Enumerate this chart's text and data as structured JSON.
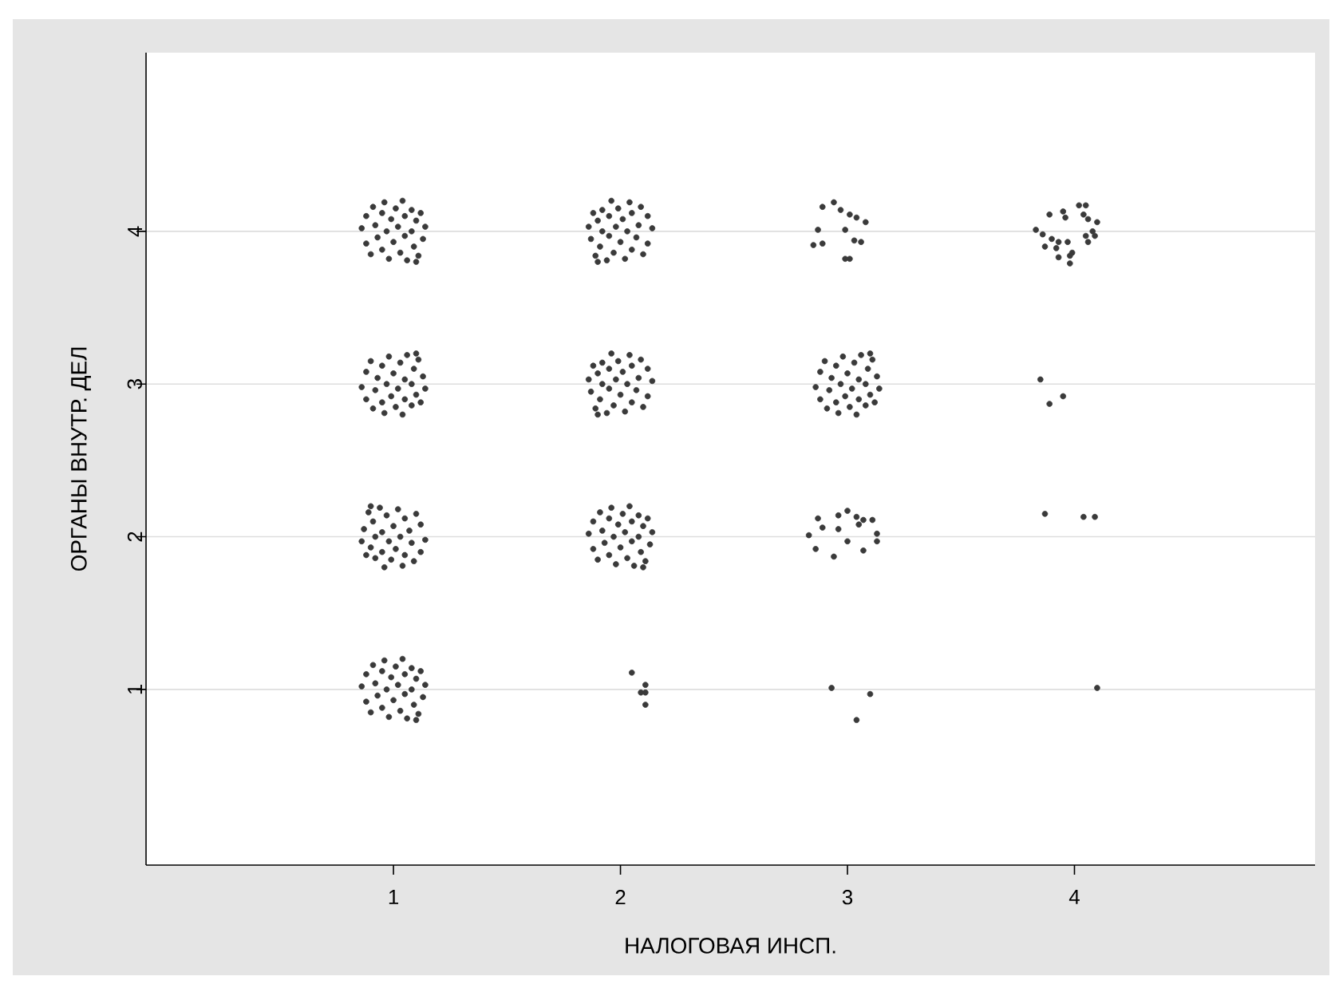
{
  "chart_data": {
    "type": "scatter",
    "xlabel": "НАЛОГОВАЯ ИНСП.",
    "ylabel": "ОРГАНЫ ВНУТР. ДЕЛ",
    "xlim": [
      -0.09,
      5.06
    ],
    "ylim": [
      -0.15,
      5.17
    ],
    "xticks": [
      1,
      2,
      3,
      4
    ],
    "yticks": [
      1,
      2,
      3,
      4
    ],
    "grid": "y",
    "series": [
      {
        "color": "#3a3a3a",
        "x": [
          0.86,
          0.88,
          0.88,
          0.9,
          0.91,
          0.92,
          0.93,
          0.95,
          0.95,
          0.96,
          0.97,
          0.98,
          0.99,
          1.0,
          1.01,
          1.02,
          1.03,
          1.04,
          1.05,
          1.05,
          1.06,
          1.08,
          1.08,
          1.09,
          1.1,
          1.11,
          1.12,
          1.13,
          1.14,
          1.1
        ],
        "values": [
          4.02,
          4.1,
          3.92,
          3.85,
          4.16,
          4.04,
          3.96,
          4.12,
          3.88,
          4.19,
          4.0,
          3.82,
          4.08,
          3.93,
          4.15,
          4.03,
          3.86,
          4.2,
          4.1,
          3.97,
          3.81,
          4.14,
          4.0,
          3.9,
          4.07,
          3.84,
          4.12,
          3.95,
          4.03,
          3.8
        ]
      },
      {
        "color": "#3a3a3a",
        "x": [
          2.14,
          2.12,
          2.12,
          2.1,
          2.09,
          2.08,
          2.07,
          2.05,
          2.05,
          2.04,
          2.03,
          2.02,
          2.01,
          2.0,
          1.99,
          1.98,
          1.97,
          1.96,
          1.95,
          1.95,
          1.94,
          1.92,
          1.92,
          1.91,
          1.9,
          1.89,
          1.88,
          1.87,
          1.86,
          1.9
        ],
        "values": [
          4.02,
          4.1,
          3.92,
          3.85,
          4.16,
          4.04,
          3.96,
          4.12,
          3.88,
          4.19,
          4.0,
          3.82,
          4.08,
          3.93,
          4.15,
          4.03,
          3.86,
          4.2,
          4.1,
          3.97,
          3.81,
          4.14,
          4.0,
          3.9,
          4.07,
          3.84,
          4.12,
          3.95,
          4.03,
          3.8
        ]
      },
      {
        "color": "#3a3a3a",
        "x": [
          2.89,
          2.94,
          2.97,
          3.01,
          3.04,
          3.08,
          2.87,
          2.99,
          3.03,
          3.06,
          2.85,
          2.89,
          2.99,
          3.01
        ],
        "values": [
          4.16,
          4.19,
          4.14,
          4.11,
          4.09,
          4.06,
          4.01,
          4.01,
          3.94,
          3.93,
          3.91,
          3.92,
          3.82,
          3.82
        ]
      },
      {
        "color": "#3a3a3a",
        "x": [
          3.83,
          3.86,
          3.89,
          3.95,
          3.96,
          4.02,
          4.05,
          4.04,
          4.06,
          4.1,
          4.08,
          4.05,
          4.09,
          4.06,
          3.9,
          3.93,
          3.97,
          3.87,
          3.92,
          3.99,
          3.98,
          3.93,
          3.98
        ],
        "values": [
          4.01,
          3.98,
          4.11,
          4.13,
          4.09,
          4.17,
          4.17,
          4.11,
          4.08,
          4.06,
          4.0,
          3.97,
          3.97,
          3.93,
          3.95,
          3.93,
          3.93,
          3.9,
          3.89,
          3.86,
          3.84,
          3.83,
          3.79
        ]
      },
      {
        "color": "#3a3a3a",
        "x": [
          0.86,
          0.88,
          0.88,
          0.9,
          0.91,
          0.92,
          0.93,
          0.95,
          0.95,
          0.96,
          0.97,
          0.98,
          0.99,
          1.0,
          1.01,
          1.02,
          1.03,
          1.04,
          1.05,
          1.05,
          1.06,
          1.08,
          1.08,
          1.09,
          1.1,
          1.11,
          1.12,
          1.13,
          1.14,
          1.1
        ],
        "values": [
          2.98,
          2.9,
          3.08,
          3.15,
          2.84,
          2.96,
          3.04,
          2.88,
          3.12,
          2.81,
          3.0,
          3.18,
          2.92,
          3.07,
          2.85,
          2.97,
          3.14,
          2.8,
          2.9,
          3.03,
          3.19,
          2.86,
          3.0,
          3.1,
          2.93,
          3.16,
          2.88,
          3.05,
          2.97,
          3.2
        ]
      },
      {
        "color": "#3a3a3a",
        "x": [
          2.14,
          2.12,
          2.12,
          2.1,
          2.09,
          2.08,
          2.07,
          2.05,
          2.05,
          2.04,
          2.03,
          2.02,
          2.01,
          2.0,
          1.99,
          1.98,
          1.97,
          1.96,
          1.95,
          1.95,
          1.94,
          1.92,
          1.92,
          1.91,
          1.9,
          1.89,
          1.88,
          1.87,
          1.86,
          1.9
        ],
        "values": [
          3.02,
          3.1,
          2.92,
          2.85,
          3.16,
          3.04,
          2.96,
          3.12,
          2.88,
          3.19,
          3.0,
          2.82,
          3.08,
          2.93,
          3.15,
          3.03,
          2.86,
          3.2,
          3.1,
          2.97,
          2.81,
          3.14,
          3.0,
          2.9,
          3.07,
          2.84,
          3.12,
          2.95,
          3.03,
          2.8
        ]
      },
      {
        "color": "#3a3a3a",
        "x": [
          2.86,
          2.88,
          2.88,
          2.9,
          2.91,
          2.92,
          2.93,
          2.95,
          2.95,
          2.96,
          2.97,
          2.98,
          2.99,
          3.0,
          3.01,
          3.02,
          3.03,
          3.04,
          3.05,
          3.05,
          3.06,
          3.08,
          3.08,
          3.09,
          3.1,
          3.11,
          3.12,
          3.13,
          3.14,
          3.1
        ],
        "values": [
          2.98,
          2.9,
          3.08,
          3.15,
          2.84,
          2.96,
          3.04,
          2.88,
          3.12,
          2.81,
          3.0,
          3.18,
          2.92,
          3.07,
          2.85,
          2.97,
          3.14,
          2.8,
          2.9,
          3.03,
          3.19,
          2.86,
          3.0,
          3.1,
          2.93,
          3.16,
          2.88,
          3.05,
          2.97,
          3.2
        ]
      },
      {
        "color": "#3a3a3a",
        "x": [
          3.85,
          3.89,
          3.95
        ],
        "values": [
          3.03,
          2.87,
          2.92
        ]
      },
      {
        "color": "#3a3a3a",
        "x": [
          1.14,
          1.12,
          1.12,
          1.1,
          1.09,
          1.08,
          1.07,
          1.05,
          1.05,
          1.04,
          1.03,
          1.02,
          1.01,
          1.0,
          0.99,
          0.98,
          0.97,
          0.96,
          0.95,
          0.95,
          0.94,
          0.92,
          0.92,
          0.91,
          0.9,
          0.89,
          0.88,
          0.87,
          0.86,
          0.9
        ],
        "values": [
          1.98,
          1.9,
          2.08,
          2.15,
          1.84,
          1.96,
          2.04,
          1.88,
          2.12,
          1.81,
          2.0,
          2.18,
          1.92,
          2.07,
          1.85,
          1.97,
          2.14,
          1.8,
          1.9,
          2.03,
          2.19,
          1.86,
          2.0,
          2.1,
          1.93,
          2.16,
          1.88,
          2.05,
          1.97,
          2.2
        ]
      },
      {
        "color": "#3a3a3a",
        "x": [
          1.86,
          1.88,
          1.88,
          1.9,
          1.91,
          1.92,
          1.93,
          1.95,
          1.95,
          1.96,
          1.97,
          1.98,
          1.99,
          2.0,
          2.01,
          2.02,
          2.03,
          2.04,
          2.05,
          2.05,
          2.06,
          2.08,
          2.08,
          2.09,
          2.1,
          2.11,
          2.12,
          2.13,
          2.14,
          2.1
        ],
        "values": [
          2.02,
          2.1,
          1.92,
          1.85,
          2.16,
          2.04,
          1.96,
          2.12,
          1.88,
          2.19,
          2.0,
          1.82,
          2.08,
          1.93,
          2.15,
          2.03,
          1.86,
          2.2,
          2.1,
          1.97,
          1.81,
          2.14,
          2.0,
          1.9,
          2.07,
          1.84,
          2.12,
          1.95,
          2.03,
          1.8
        ]
      },
      {
        "color": "#3a3a3a",
        "x": [
          2.83,
          2.87,
          2.89,
          2.86,
          2.94,
          2.96,
          3.0,
          2.96,
          3.0,
          3.04,
          3.07,
          3.11,
          3.05,
          3.13,
          3.13,
          3.07
        ],
        "values": [
          2.01,
          2.12,
          2.06,
          1.92,
          1.87,
          2.14,
          2.17,
          2.05,
          1.97,
          2.13,
          2.11,
          2.11,
          2.08,
          2.02,
          1.97,
          1.91
        ]
      },
      {
        "color": "#3a3a3a",
        "x": [
          3.87,
          4.04,
          4.09
        ],
        "values": [
          2.15,
          2.13,
          2.13
        ]
      },
      {
        "color": "#3a3a3a",
        "x": [
          0.86,
          0.88,
          0.88,
          0.9,
          0.91,
          0.92,
          0.93,
          0.95,
          0.95,
          0.96,
          0.97,
          0.98,
          0.99,
          1.0,
          1.01,
          1.02,
          1.03,
          1.04,
          1.05,
          1.05,
          1.06,
          1.08,
          1.08,
          1.09,
          1.1,
          1.11,
          1.12,
          1.13,
          1.14,
          1.1
        ],
        "values": [
          1.02,
          1.1,
          0.92,
          0.85,
          1.16,
          1.04,
          0.96,
          1.12,
          0.88,
          1.19,
          1.0,
          0.82,
          1.08,
          0.93,
          1.15,
          1.03,
          0.86,
          1.2,
          1.1,
          0.97,
          0.81,
          1.14,
          1.0,
          0.9,
          1.07,
          0.84,
          1.12,
          0.95,
          1.03,
          0.8
        ]
      },
      {
        "color": "#3a3a3a",
        "x": [
          2.05,
          2.09,
          2.11,
          2.11,
          2.11
        ],
        "values": [
          1.11,
          0.98,
          1.03,
          0.98,
          0.9
        ]
      },
      {
        "color": "#3a3a3a",
        "x": [
          2.93,
          3.1,
          3.04
        ],
        "values": [
          1.01,
          0.97,
          0.8
        ]
      },
      {
        "color": "#3a3a3a",
        "x": [
          4.1
        ],
        "values": [
          1.01
        ]
      }
    ]
  }
}
